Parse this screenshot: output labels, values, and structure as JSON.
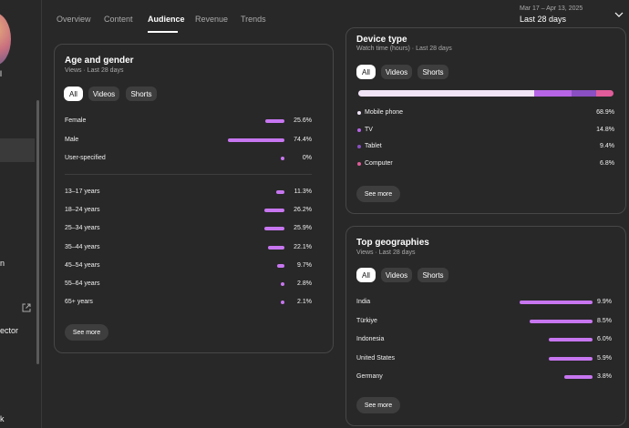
{
  "sidebar": {
    "items": [
      {
        "label": "l"
      },
      {
        "label": "n"
      },
      {
        "label": "ector"
      },
      {
        "label": "k"
      }
    ]
  },
  "tabs": [
    {
      "label": "Overview"
    },
    {
      "label": "Content"
    },
    {
      "label": "Audience"
    },
    {
      "label": "Revenue"
    },
    {
      "label": "Trends"
    }
  ],
  "date_range": {
    "range": "Mar 17 – Apr 13, 2025",
    "label": "Last 28 days"
  },
  "age_gender": {
    "title": "Age and gender",
    "subtitle": "Views · Last 28 days",
    "chips": [
      "All",
      "Videos",
      "Shorts"
    ],
    "gender": [
      {
        "label": "Female",
        "value": "25.6%",
        "pct": 25.6
      },
      {
        "label": "Male",
        "value": "74.4%",
        "pct": 74.4
      },
      {
        "label": "User-specified",
        "value": "0%",
        "pct": 0
      }
    ],
    "ages": [
      {
        "label": "13–17 years",
        "value": "11.3%",
        "pct": 11.3
      },
      {
        "label": "18–24 years",
        "value": "26.2%",
        "pct": 26.2
      },
      {
        "label": "25–34 years",
        "value": "25.9%",
        "pct": 25.9
      },
      {
        "label": "35–44 years",
        "value": "22.1%",
        "pct": 22.1
      },
      {
        "label": "45–54 years",
        "value": "9.7%",
        "pct": 9.7
      },
      {
        "label": "55–64 years",
        "value": "2.8%",
        "pct": 2.8
      },
      {
        "label": "65+ years",
        "value": "2.1%",
        "pct": 2.1
      }
    ],
    "see_more": "See more"
  },
  "device_type": {
    "title": "Device type",
    "subtitle": "Watch time (hours) · Last 28 days",
    "chips": [
      "All",
      "Videos",
      "Shorts"
    ],
    "devices": [
      {
        "label": "Mobile phone",
        "value": "68.9%",
        "pct": 68.9,
        "color": "#f1e4f7"
      },
      {
        "label": "TV",
        "value": "14.8%",
        "pct": 14.8,
        "color": "#b765e6"
      },
      {
        "label": "Tablet",
        "value": "9.4%",
        "pct": 9.4,
        "color": "#8a4fc2"
      },
      {
        "label": "Computer",
        "value": "6.8%",
        "pct": 6.8,
        "color": "#e05c9a"
      }
    ],
    "see_more": "See more"
  },
  "geographies": {
    "title": "Top geographies",
    "subtitle": "Views · Last 28 days",
    "chips": [
      "All",
      "Videos",
      "Shorts"
    ],
    "rows": [
      {
        "label": "India",
        "value": "9.9%",
        "pct": 9.9
      },
      {
        "label": "Türkiye",
        "value": "8.5%",
        "pct": 8.5
      },
      {
        "label": "Indonesia",
        "value": "6.0%",
        "pct": 6.0
      },
      {
        "label": "United States",
        "value": "5.9%",
        "pct": 5.9
      },
      {
        "label": "Germany",
        "value": "3.8%",
        "pct": 3.8
      }
    ],
    "see_more": "See more"
  },
  "colors": {
    "accent": "#c776f0",
    "background": "#282828",
    "card_border": "#474747"
  }
}
